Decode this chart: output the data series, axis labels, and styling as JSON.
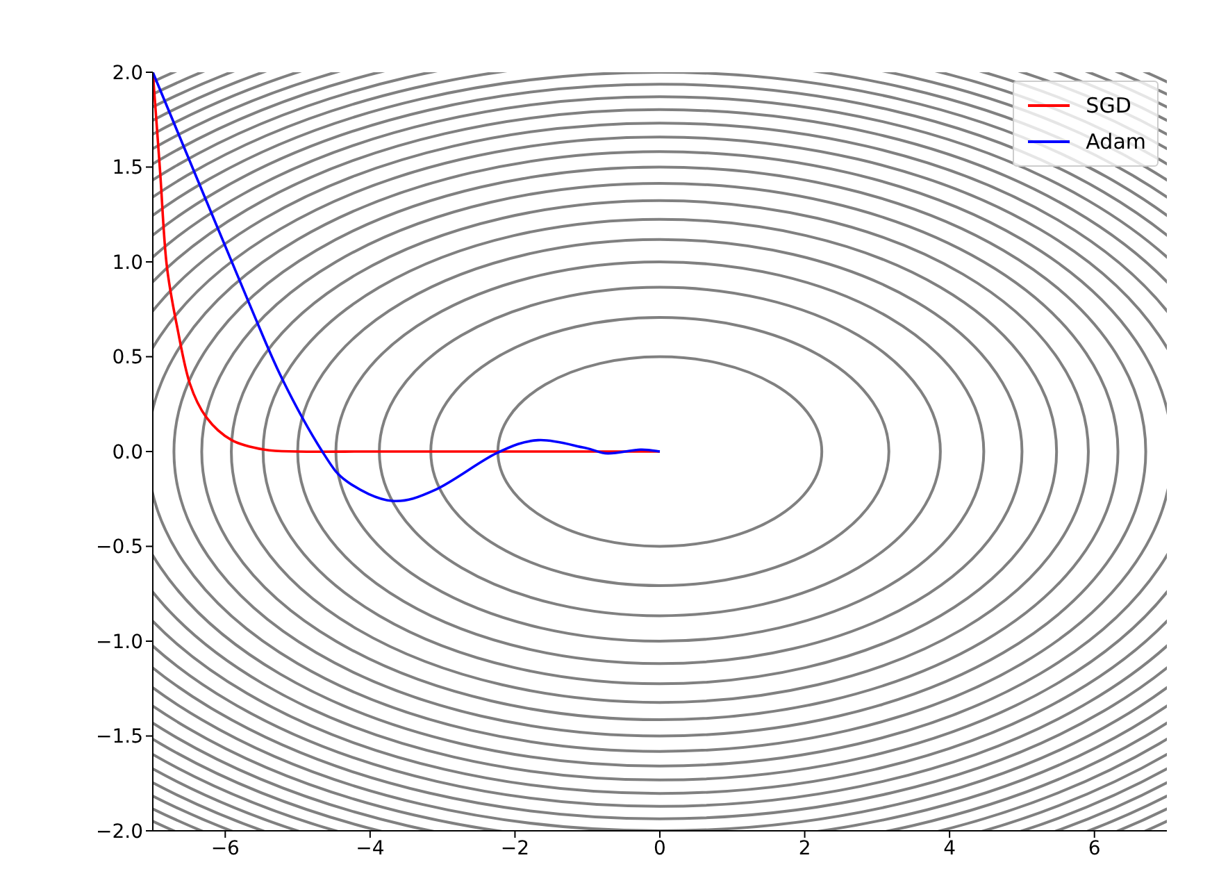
{
  "chart_data": {
    "type": "line",
    "xlim": [
      -7,
      7
    ],
    "ylim": [
      -2,
      2
    ],
    "xticks": [
      {
        "value": -6,
        "label": "−6"
      },
      {
        "value": -4,
        "label": "−4"
      },
      {
        "value": -2,
        "label": "−2"
      },
      0,
      2,
      4,
      6
    ],
    "yticks": [
      {
        "value": -2,
        "label": "−2.0"
      },
      {
        "value": -1.5,
        "label": "−1.5"
      },
      {
        "value": -1,
        "label": "−1.0"
      },
      {
        "value": -0.5,
        "label": "−0.5"
      },
      {
        "value": 0,
        "label": "0.0"
      },
      0.5,
      {
        "value": 1,
        "label": "1.0"
      },
      1.5,
      {
        "value": 2,
        "label": "2.0"
      }
    ],
    "legend": "top right",
    "series": [
      {
        "name": "SGD",
        "color": "#ff0000",
        "x": [
          -7,
          -6.9,
          -6.81,
          -6.65,
          -6.49,
          -6.26,
          -5.91,
          -5.46,
          -5,
          -4,
          -3,
          -2,
          -1,
          0
        ],
        "values": [
          2,
          1.48,
          0.99,
          0.63,
          0.36,
          0.18,
          0.06,
          0.01,
          0,
          0,
          0,
          0,
          0,
          0
        ]
      },
      {
        "name": "Adam",
        "color": "#0000ff",
        "x": [
          -7,
          -5.69,
          -5.21,
          -4.66,
          -4.31,
          -3.7,
          -3.09,
          -2.26,
          -1.68,
          -1.04,
          -0.72,
          -0.27,
          0
        ],
        "values": [
          2,
          0.8,
          0.38,
          0,
          -0.16,
          -0.26,
          -0.2,
          -0.01,
          0.06,
          0.02,
          -0.01,
          0.01,
          0
        ]
      }
    ]
  }
}
